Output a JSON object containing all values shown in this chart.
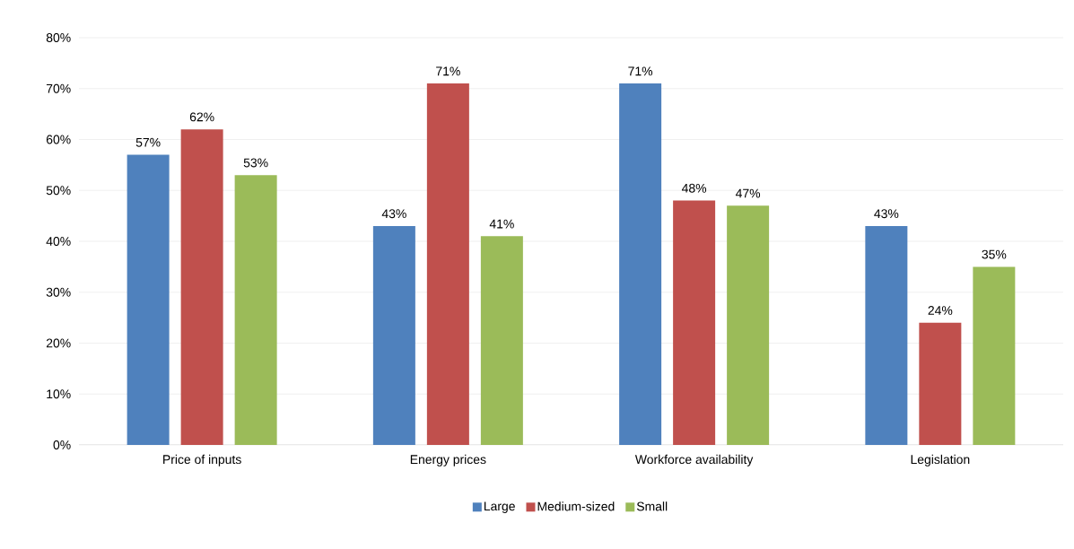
{
  "chart_data": {
    "type": "bar",
    "categories": [
      "Price of inputs",
      "Energy prices",
      "Workforce availability",
      "Legislation"
    ],
    "series": [
      {
        "name": "Large",
        "color": "#4f81bd",
        "values": [
          57,
          43,
          71,
          43
        ],
        "value_labels": [
          "57%",
          "43%",
          "71%",
          "43%"
        ]
      },
      {
        "name": "Medium-sized",
        "color": "#c0504d",
        "values": [
          62,
          71,
          48,
          24
        ],
        "value_labels": [
          "62%",
          "71%",
          "48%",
          "24%"
        ]
      },
      {
        "name": "Small",
        "color": "#9bbb59",
        "values": [
          53,
          41,
          47,
          35
        ],
        "value_labels": [
          "53%",
          "41%",
          "47%",
          "35%"
        ]
      }
    ],
    "ylim": [
      0,
      80
    ],
    "yticks": [
      {
        "value": 0,
        "label": "0%"
      },
      {
        "value": 10,
        "label": "10%"
      },
      {
        "value": 20,
        "label": "20%"
      },
      {
        "value": 30,
        "label": "30%"
      },
      {
        "value": 40,
        "label": "40%"
      },
      {
        "value": 50,
        "label": "50%"
      },
      {
        "value": 60,
        "label": "60%"
      },
      {
        "value": 70,
        "label": "70%"
      },
      {
        "value": 80,
        "label": "80%"
      }
    ],
    "grid": "y",
    "legend": "bottom"
  }
}
